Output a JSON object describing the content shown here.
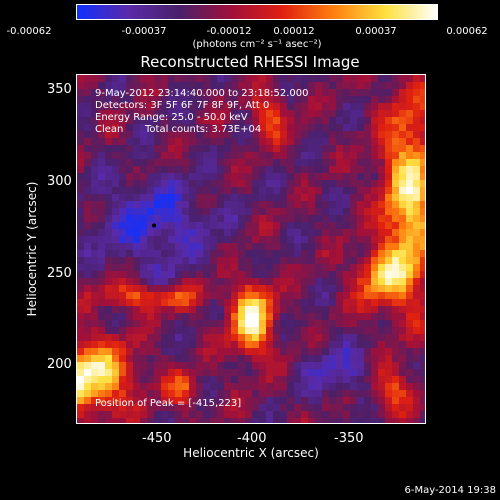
{
  "colorbar": {
    "tick_labels": [
      "-0.00062",
      "-0.00037",
      "-0.00012",
      "0.00012",
      "0.00037",
      "0.00062"
    ],
    "unit": "(photons cm⁻² s⁻¹ asec⁻²)",
    "range": [
      -0.00062,
      0.00062
    ],
    "colors": [
      "#1030ff",
      "#5a2aa8",
      "#4a206a",
      "#a0103a",
      "#e02010",
      "#ff8010",
      "#ffe040",
      "#ffffff"
    ]
  },
  "title": "Reconstructed RHESSI Image",
  "overlay": {
    "time_range": "9-May-2012 23:14:40.000 to 23:18:52.000",
    "detectors": "Detectors: 3F 5F 6F 7F 8F 9F, Att 0",
    "energy": "Energy Range: 25.0 - 50.0 keV",
    "clean_label": "Clean",
    "total_counts": "Total counts: 3.73E+04",
    "peak": "Position of Peak = [-415,223]"
  },
  "axes": {
    "xlabel": "Heliocentric X (arcsec)",
    "ylabel": "Heliocentric Y (arcsec)",
    "xticks": [
      "-450",
      "-400",
      "-350"
    ],
    "yticks": [
      "350",
      "300",
      "250",
      "200"
    ],
    "xrange": [
      -505,
      -385
    ],
    "yrange": [
      165,
      360
    ]
  },
  "peak_marker": {
    "x": -415,
    "y": 223
  },
  "footer_date": "6-May-2014 19:38"
}
